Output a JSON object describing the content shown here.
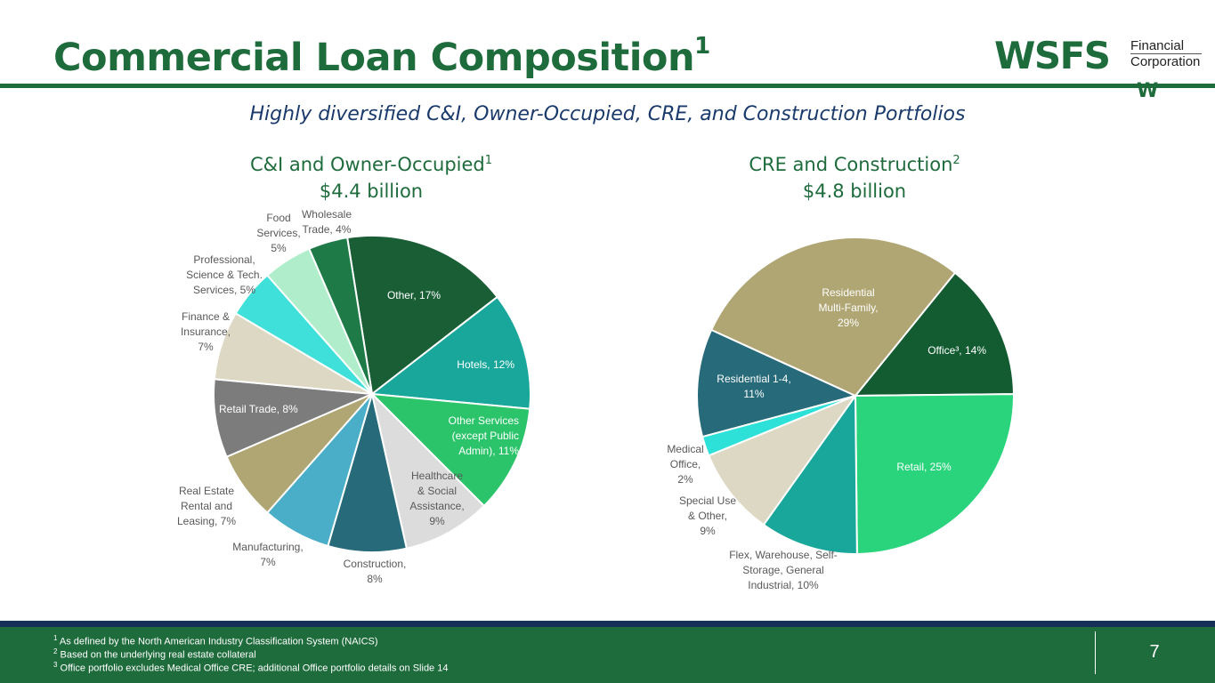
{
  "slide": {
    "title": "Commercial Loan Composition",
    "title_sup": "1",
    "subtitle": "Highly diversified C&I, Owner-Occupied, CRE, and Construction Portfolios",
    "page_number": "7"
  },
  "logo": {
    "main": "WSFS",
    "line1": "Financial",
    "line2": "Corporation",
    "mark": "W"
  },
  "colors": {
    "brand_green": "#1e6b3c",
    "navy": "#16305a",
    "subtitle": "#1a3a6b"
  },
  "footnotes": [
    {
      "sup": "1",
      "text": "As defined by the North American Industry Classification System (NAICS)"
    },
    {
      "sup": "2",
      "text": "Based on the underlying real estate collateral"
    },
    {
      "sup": "3",
      "text": "Office portfolio excludes Medical Office CRE; additional Office portfolio details on Slide 14"
    }
  ],
  "chart_data": [
    {
      "type": "pie",
      "title": "C&I and Owner-Occupied",
      "title_sup": "1",
      "subtitle": "$4.4 billion",
      "unit": "%",
      "slices": [
        {
          "label": "Other, 17%",
          "value": 17,
          "color": "#1a5e36"
        },
        {
          "label": "Hotels, 12%",
          "value": 12,
          "color": "#1aa79b"
        },
        {
          "label": "Other Services (except Public Admin), 11%",
          "value": 11,
          "color": "#2cc46a"
        },
        {
          "label": "Healthcare & Social Assistance, 9%",
          "value": 9,
          "color": "#dcdcdc"
        },
        {
          "label": "Construction, 8%",
          "value": 8,
          "color": "#276a7a"
        },
        {
          "label": "Manufacturing, 7%",
          "value": 7,
          "color": "#4aaec9"
        },
        {
          "label": "Real Estate Rental and Leasing, 7%",
          "value": 7,
          "color": "#b0a673"
        },
        {
          "label": "Retail Trade, 8%",
          "value": 8,
          "color": "#7c7c7c"
        },
        {
          "label": "Finance & Insurance, 7%",
          "value": 7,
          "color": "#ddd8c4"
        },
        {
          "label": "Professional, Science & Tech. Services, 5%",
          "value": 5,
          "color": "#40e0da"
        },
        {
          "label": "Food Services, 5%",
          "value": 5,
          "color": "#b0eecb"
        },
        {
          "label": "Wholesale Trade, 4%",
          "value": 4,
          "color": "#1e7a46"
        }
      ]
    },
    {
      "type": "pie",
      "title": "CRE and Construction",
      "title_sup": "2",
      "subtitle": "$4.8 billion",
      "unit": "%",
      "slices": [
        {
          "label": "Office3, 14%",
          "value": 14,
          "color": "#135c32"
        },
        {
          "label": "Retail, 25%",
          "value": 25,
          "color": "#2ad47c"
        },
        {
          "label": "Flex, Warehouse, Self-Storage, General Industrial, 10%",
          "value": 10,
          "color": "#1aa79b"
        },
        {
          "label": "Special Use & Other, 9%",
          "value": 9,
          "color": "#ddd8c4"
        },
        {
          "label": "Medical Office, 2%",
          "value": 2,
          "color": "#2de0d8"
        },
        {
          "label": "Residential 1-4, 11%",
          "value": 11,
          "color": "#276a7a"
        },
        {
          "label": "Residential Multi-Family, 29%",
          "value": 29,
          "color": "#b0a673"
        }
      ]
    }
  ],
  "pie_labels": {
    "ci": [
      {
        "lines": [
          "Other, 17%"
        ],
        "color": "#ffffff",
        "anchor": "middle"
      },
      {
        "lines": [
          "Hotels, 12%"
        ],
        "color": "#ffffff",
        "anchor": "end"
      },
      {
        "lines": [
          "Other Services",
          "(except Public",
          "Admin), 11%"
        ],
        "color": "#ffffff",
        "anchor": "end"
      },
      {
        "lines": [
          "Healthcare",
          "& Social",
          "Assistance,",
          "9%"
        ],
        "color": "#595959",
        "anchor": "middle"
      },
      {
        "lines": [
          "Construction,",
          "8%"
        ],
        "color": "#595959",
        "anchor": "middle"
      },
      {
        "lines": [
          "Manufacturing,",
          "7%"
        ],
        "color": "#595959",
        "anchor": "middle"
      },
      {
        "lines": [
          "Real Estate",
          "Rental and",
          "Leasing, 7%"
        ],
        "color": "#595959",
        "anchor": "middle"
      },
      {
        "lines": [
          "Retail Trade, 8%"
        ],
        "color": "#ffffff",
        "anchor": "start"
      },
      {
        "lines": [
          "Finance &",
          "Insurance,",
          "7%"
        ],
        "color": "#595959",
        "anchor": "middle"
      },
      {
        "lines": [
          "Professional,",
          "Science & Tech.",
          "Services, 5%"
        ],
        "color": "#595959",
        "anchor": "middle"
      },
      {
        "lines": [
          "Food",
          "Services,",
          "5%"
        ],
        "color": "#595959",
        "anchor": "middle"
      },
      {
        "lines": [
          "Wholesale",
          "Trade, 4%"
        ],
        "color": "#595959",
        "anchor": "middle"
      }
    ],
    "cre": [
      {
        "lines": [
          "Office³, 14%"
        ],
        "color": "#ffffff",
        "anchor": "end"
      },
      {
        "lines": [
          "Retail, 25%"
        ],
        "color": "#ffffff",
        "anchor": "middle"
      },
      {
        "lines": [
          "Flex, Warehouse, Self-",
          "Storage, General",
          "Industrial, 10%"
        ],
        "color": "#595959",
        "anchor": "middle"
      },
      {
        "lines": [
          "Special Use",
          "& Other,",
          "9%"
        ],
        "color": "#595959",
        "anchor": "middle"
      },
      {
        "lines": [
          "Medical",
          "Office,",
          "2%"
        ],
        "color": "#595959",
        "anchor": "middle"
      },
      {
        "lines": [
          "Residential 1-4,",
          "11%"
        ],
        "color": "#ffffff",
        "anchor": "middle"
      },
      {
        "lines": [
          "Residential",
          "Multi-Family,",
          "29%"
        ],
        "color": "#ffffff",
        "anchor": "middle"
      }
    ]
  }
}
